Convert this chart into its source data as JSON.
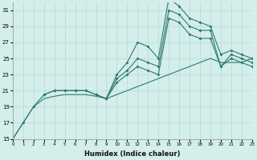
{
  "xlabel": "Humidex (Indice chaleur)",
  "bg_color": "#d4eeeb",
  "line_color": "#2d7a72",
  "grid_color": "#b8d8d4",
  "xlim": [
    0,
    23
  ],
  "ylim": [
    15,
    32
  ],
  "yticks": [
    15,
    17,
    19,
    21,
    23,
    25,
    27,
    29,
    31
  ],
  "xticks": [
    0,
    1,
    2,
    3,
    4,
    5,
    6,
    7,
    8,
    9,
    10,
    11,
    12,
    13,
    14,
    15,
    16,
    17,
    18,
    19,
    20,
    21,
    22,
    23
  ],
  "lines": [
    {
      "x": [
        0,
        1,
        2,
        3,
        4,
        5,
        6,
        7,
        8,
        9,
        10,
        11,
        12,
        13,
        14,
        15,
        16,
        17,
        18,
        19,
        20,
        21,
        22,
        23
      ],
      "y": [
        15,
        17,
        19,
        20.5,
        21,
        21,
        21,
        21,
        20.5,
        20,
        23,
        24.5,
        27,
        26.5,
        25,
        32.5,
        31.5,
        30,
        29.5,
        29,
        25.5,
        26,
        25.5,
        25
      ],
      "marker": true
    },
    {
      "x": [
        3,
        4,
        5,
        6,
        7,
        8,
        9,
        10,
        11,
        12,
        13,
        14,
        15,
        16,
        17,
        18,
        19,
        20,
        21,
        22,
        23
      ],
      "y": [
        20.5,
        21,
        21,
        21,
        21,
        20.5,
        20,
        22.5,
        23.5,
        25,
        24.5,
        24,
        31,
        30.5,
        29,
        28.5,
        28.5,
        24,
        25.5,
        25,
        24.5
      ],
      "marker": true
    },
    {
      "x": [
        9,
        10,
        11,
        12,
        13,
        14,
        15,
        16,
        17,
        18,
        19,
        20,
        21,
        22,
        23
      ],
      "y": [
        20,
        22,
        23,
        24,
        23.5,
        23,
        30,
        29.5,
        28,
        27.5,
        27.5,
        24,
        25,
        24.5,
        24
      ],
      "marker": true
    },
    {
      "x": [
        0,
        1,
        2,
        3,
        4,
        5,
        6,
        7,
        8,
        9,
        10,
        11,
        12,
        13,
        14,
        15,
        16,
        17,
        18,
        19,
        20,
        21,
        22,
        23
      ],
      "y": [
        15,
        17,
        19,
        20,
        20.3,
        20.5,
        20.5,
        20.5,
        20.3,
        20,
        20.5,
        21,
        21.5,
        22,
        22.5,
        23,
        23.5,
        24,
        24.5,
        25,
        24.5,
        24.5,
        24.5,
        25
      ],
      "marker": false
    }
  ]
}
